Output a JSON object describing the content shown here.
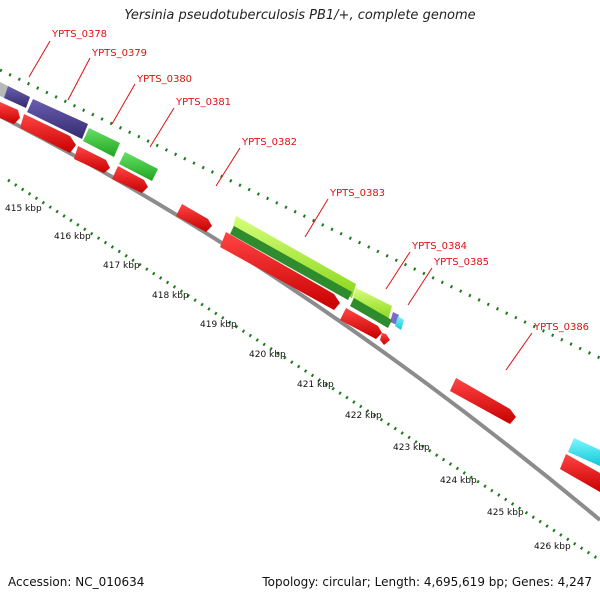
{
  "title": "Yersinia pseudotuberculosis PB1/+, complete genome",
  "footer": {
    "accession": "Accession: NC_010634",
    "stats": "Topology: circular; Length: 4,695,619 bp; Genes: 4,247"
  },
  "colors": {
    "backbone": "#8c8c8c",
    "cds_red": "#ee1111",
    "label_red": "#dd1111",
    "tick_green": "#1d7a1d",
    "purple": "#4b3f8c",
    "green": "#33cc33",
    "lime": "#a8f03a",
    "dark_green": "#2e8b2e",
    "cyan": "#22e5f0"
  },
  "genes": [
    {
      "name": "YPTS_0378"
    },
    {
      "name": "YPTS_0379"
    },
    {
      "name": "YPTS_0380"
    },
    {
      "name": "YPTS_0381"
    },
    {
      "name": "YPTS_0382"
    },
    {
      "name": "YPTS_0383"
    },
    {
      "name": "YPTS_0384"
    },
    {
      "name": "YPTS_0385"
    },
    {
      "name": "YPTS_0386"
    }
  ],
  "kbp_labels": [
    "415 kbp",
    "416 kbp",
    "417 kbp",
    "418 kbp",
    "419 kbp",
    "420 kbp",
    "421 kbp",
    "422 kbp",
    "423 kbp",
    "424 kbp",
    "425 kbp",
    "426 kbp"
  ]
}
